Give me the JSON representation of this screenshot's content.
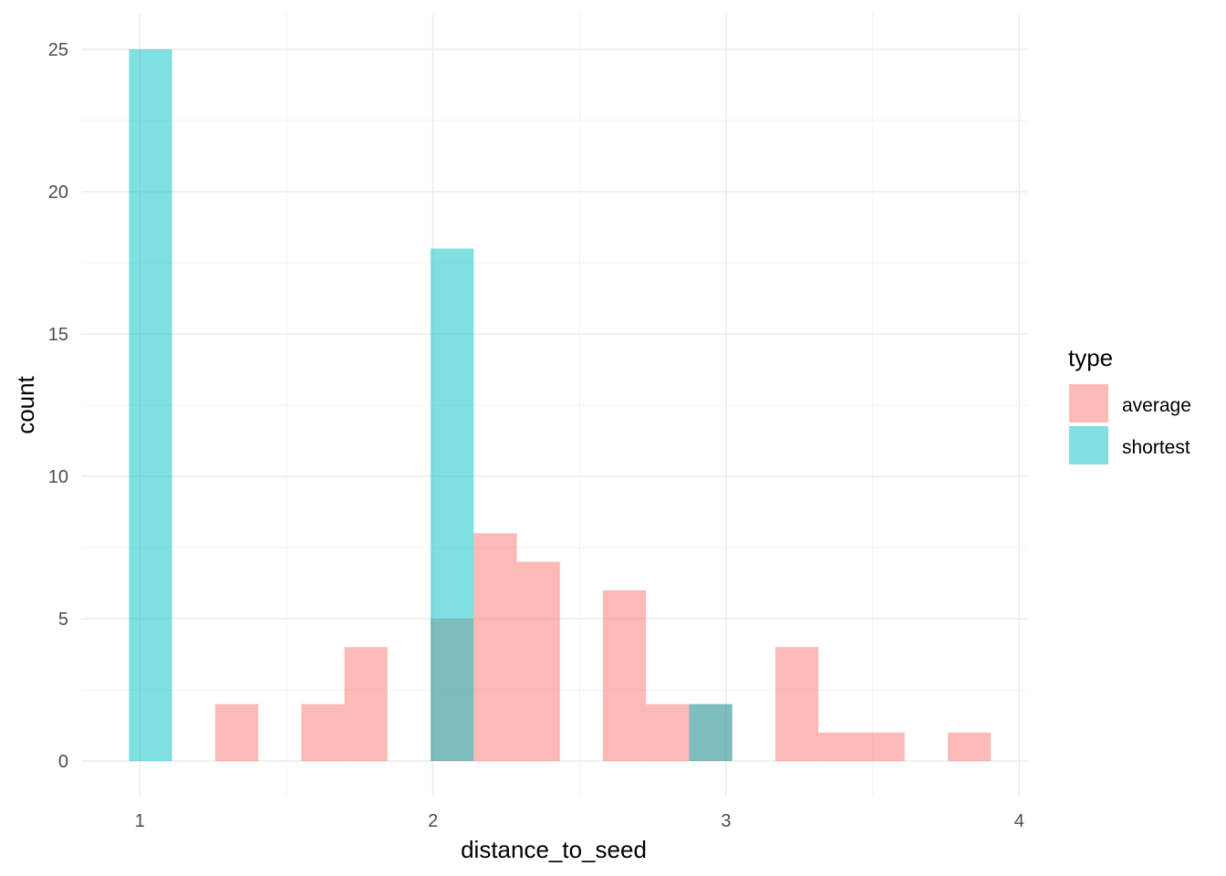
{
  "chart_data": {
    "type": "bar",
    "xlabel": "distance_to_seed",
    "ylabel": "count",
    "xlim": [
      0.8,
      4.03
    ],
    "ylim": [
      -1.25,
      26.25
    ],
    "x_ticks": [
      1,
      2,
      3,
      4
    ],
    "y_ticks": [
      0,
      5,
      10,
      15,
      20,
      25
    ],
    "grid": true,
    "bin_width": 0.147,
    "legend": {
      "title": "type",
      "placement": "right",
      "entries": [
        "average",
        "shortest"
      ]
    },
    "series": [
      {
        "name": "average",
        "color": "#F8766D",
        "opacity": 0.5,
        "bins": [
          {
            "x0": 1.257,
            "x1": 1.404,
            "count": 2
          },
          {
            "x0": 1.551,
            "x1": 1.698,
            "count": 2
          },
          {
            "x0": 1.698,
            "x1": 1.845,
            "count": 4
          },
          {
            "x0": 1.992,
            "x1": 2.139,
            "count": 5
          },
          {
            "x0": 2.139,
            "x1": 2.286,
            "count": 8
          },
          {
            "x0": 2.286,
            "x1": 2.433,
            "count": 7
          },
          {
            "x0": 2.58,
            "x1": 2.727,
            "count": 6
          },
          {
            "x0": 2.727,
            "x1": 2.874,
            "count": 2
          },
          {
            "x0": 2.874,
            "x1": 3.021,
            "count": 2
          },
          {
            "x0": 3.168,
            "x1": 3.315,
            "count": 4
          },
          {
            "x0": 3.315,
            "x1": 3.462,
            "count": 1
          },
          {
            "x0": 3.462,
            "x1": 3.609,
            "count": 1
          },
          {
            "x0": 3.756,
            "x1": 3.903,
            "count": 1
          }
        ]
      },
      {
        "name": "shortest",
        "color": "#00BFC4",
        "opacity": 0.5,
        "bins": [
          {
            "x0": 0.963,
            "x1": 1.11,
            "count": 25
          },
          {
            "x0": 1.992,
            "x1": 2.139,
            "count": 18
          },
          {
            "x0": 2.874,
            "x1": 3.021,
            "count": 2
          }
        ]
      }
    ]
  }
}
